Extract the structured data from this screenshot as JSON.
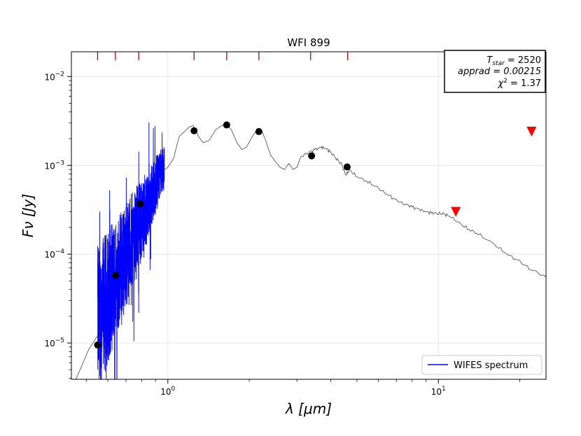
{
  "chart_data": {
    "type": "scatter",
    "title": "WFI 899",
    "xlabel": "λ [μm]",
    "ylabel": "Fν [Jy]",
    "xscale": "log",
    "yscale": "log",
    "xlim": [
      0.44,
      25.0
    ],
    "ylim": [
      3.9e-06,
      0.019
    ],
    "grid": true,
    "x_ticks": [
      {
        "value": 1,
        "base": "10",
        "exp": "0"
      },
      {
        "value": 10,
        "base": "10",
        "exp": "1"
      }
    ],
    "y_ticks": [
      {
        "value": 1e-05,
        "base": "10",
        "exp": "−5"
      },
      {
        "value": 0.0001,
        "base": "10",
        "exp": "−4"
      },
      {
        "value": 0.001,
        "base": "10",
        "exp": "−3"
      },
      {
        "value": 0.01,
        "base": "10",
        "exp": "−2"
      }
    ],
    "filter_ticks_top": [
      0.55,
      0.64,
      0.78,
      1.25,
      1.65,
      2.17,
      3.37,
      4.62
    ],
    "photometry": [
      {
        "x": 0.55,
        "y": 9.5e-06
      },
      {
        "x": 0.64,
        "y": 5.8e-05
      },
      {
        "x": 0.79,
        "y": 0.00037
      },
      {
        "x": 1.25,
        "y": 0.00245
      },
      {
        "x": 1.65,
        "y": 0.00285
      },
      {
        "x": 2.17,
        "y": 0.0024
      },
      {
        "x": 3.4,
        "y": 0.00128
      },
      {
        "x": 4.6,
        "y": 0.00096
      }
    ],
    "upper_limits": [
      {
        "x": 11.6,
        "y": 0.0003
      },
      {
        "x": 22.1,
        "y": 0.0024
      }
    ],
    "model_points": [
      [
        0.45,
        3.5e-06
      ],
      [
        0.48,
        5.5e-06
      ],
      [
        0.51,
        8.5e-06
      ],
      [
        0.55,
        1.2e-05
      ],
      [
        0.58,
        2.4e-05
      ],
      [
        0.62,
        4.5e-05
      ],
      [
        0.66,
        7e-05
      ],
      [
        0.7,
        0.00012
      ],
      [
        0.75,
        0.0002
      ],
      [
        0.8,
        0.00032
      ],
      [
        0.85,
        0.00045
      ],
      [
        0.9,
        0.0006
      ],
      [
        0.95,
        0.00085
      ],
      [
        1.0,
        0.00095
      ],
      [
        1.05,
        0.0012
      ],
      [
        1.1,
        0.0021
      ],
      [
        1.15,
        0.0024
      ],
      [
        1.2,
        0.0027
      ],
      [
        1.24,
        0.0028
      ],
      [
        1.3,
        0.0021
      ],
      [
        1.35,
        0.0018
      ],
      [
        1.42,
        0.0019
      ],
      [
        1.5,
        0.0025
      ],
      [
        1.58,
        0.0028
      ],
      [
        1.65,
        0.0029
      ],
      [
        1.72,
        0.0025
      ],
      [
        1.8,
        0.0018
      ],
      [
        1.88,
        0.0015
      ],
      [
        1.95,
        0.0016
      ],
      [
        2.05,
        0.0021
      ],
      [
        2.15,
        0.0026
      ],
      [
        2.22,
        0.0025
      ],
      [
        2.3,
        0.0019
      ],
      [
        2.4,
        0.0013
      ],
      [
        2.5,
        0.0011
      ],
      [
        2.6,
        0.00095
      ],
      [
        2.7,
        0.0009
      ],
      [
        2.8,
        0.00105
      ],
      [
        2.9,
        0.0009
      ],
      [
        3.0,
        0.00095
      ],
      [
        3.1,
        0.00125
      ],
      [
        3.3,
        0.0014
      ],
      [
        3.5,
        0.0015
      ],
      [
        3.7,
        0.0016
      ],
      [
        3.85,
        0.00155
      ],
      [
        4.0,
        0.0014
      ],
      [
        4.2,
        0.0012
      ],
      [
        4.4,
        0.001
      ],
      [
        4.55,
        0.00078
      ],
      [
        4.7,
        0.00088
      ],
      [
        5.0,
        0.00075
      ],
      [
        5.5,
        0.00065
      ],
      [
        6.0,
        0.00055
      ],
      [
        6.5,
        0.00047
      ],
      [
        7.0,
        0.0004
      ],
      [
        7.5,
        0.00037
      ],
      [
        8.0,
        0.00034
      ],
      [
        8.5,
        0.00032
      ],
      [
        9.0,
        0.0003
      ],
      [
        9.5,
        0.00029
      ],
      [
        10.0,
        0.00029
      ],
      [
        10.5,
        0.00028
      ],
      [
        11.0,
        0.00027
      ],
      [
        12.0,
        0.00022
      ],
      [
        13.0,
        0.00019
      ],
      [
        14.0,
        0.00017
      ],
      [
        16.0,
        0.00013
      ],
      [
        18.0,
        0.0001
      ],
      [
        20.0,
        8.2e-05
      ],
      [
        22.0,
        6.8e-05
      ],
      [
        25.0,
        5.5e-05
      ]
    ],
    "spectrum": {
      "name": "WIFES spectrum",
      "color": "#0000ff",
      "range": [
        0.55,
        0.97
      ]
    },
    "legend": {
      "position": "lower-right",
      "label": "WIFES spectrum"
    },
    "annotation": {
      "t_label": "T",
      "t_sub": "star",
      "t_value": " = 2520",
      "apprad": "apprad = 0.00215",
      "chi_label": "χ",
      "chi_sup": "2",
      "chi_value": " = 1.37"
    },
    "colors": {
      "photometry": "#000000",
      "upper_limits": "#ff0000",
      "model": "#444444",
      "filter_ticks": "#cc0000",
      "grid": "#e6e6e6"
    }
  }
}
